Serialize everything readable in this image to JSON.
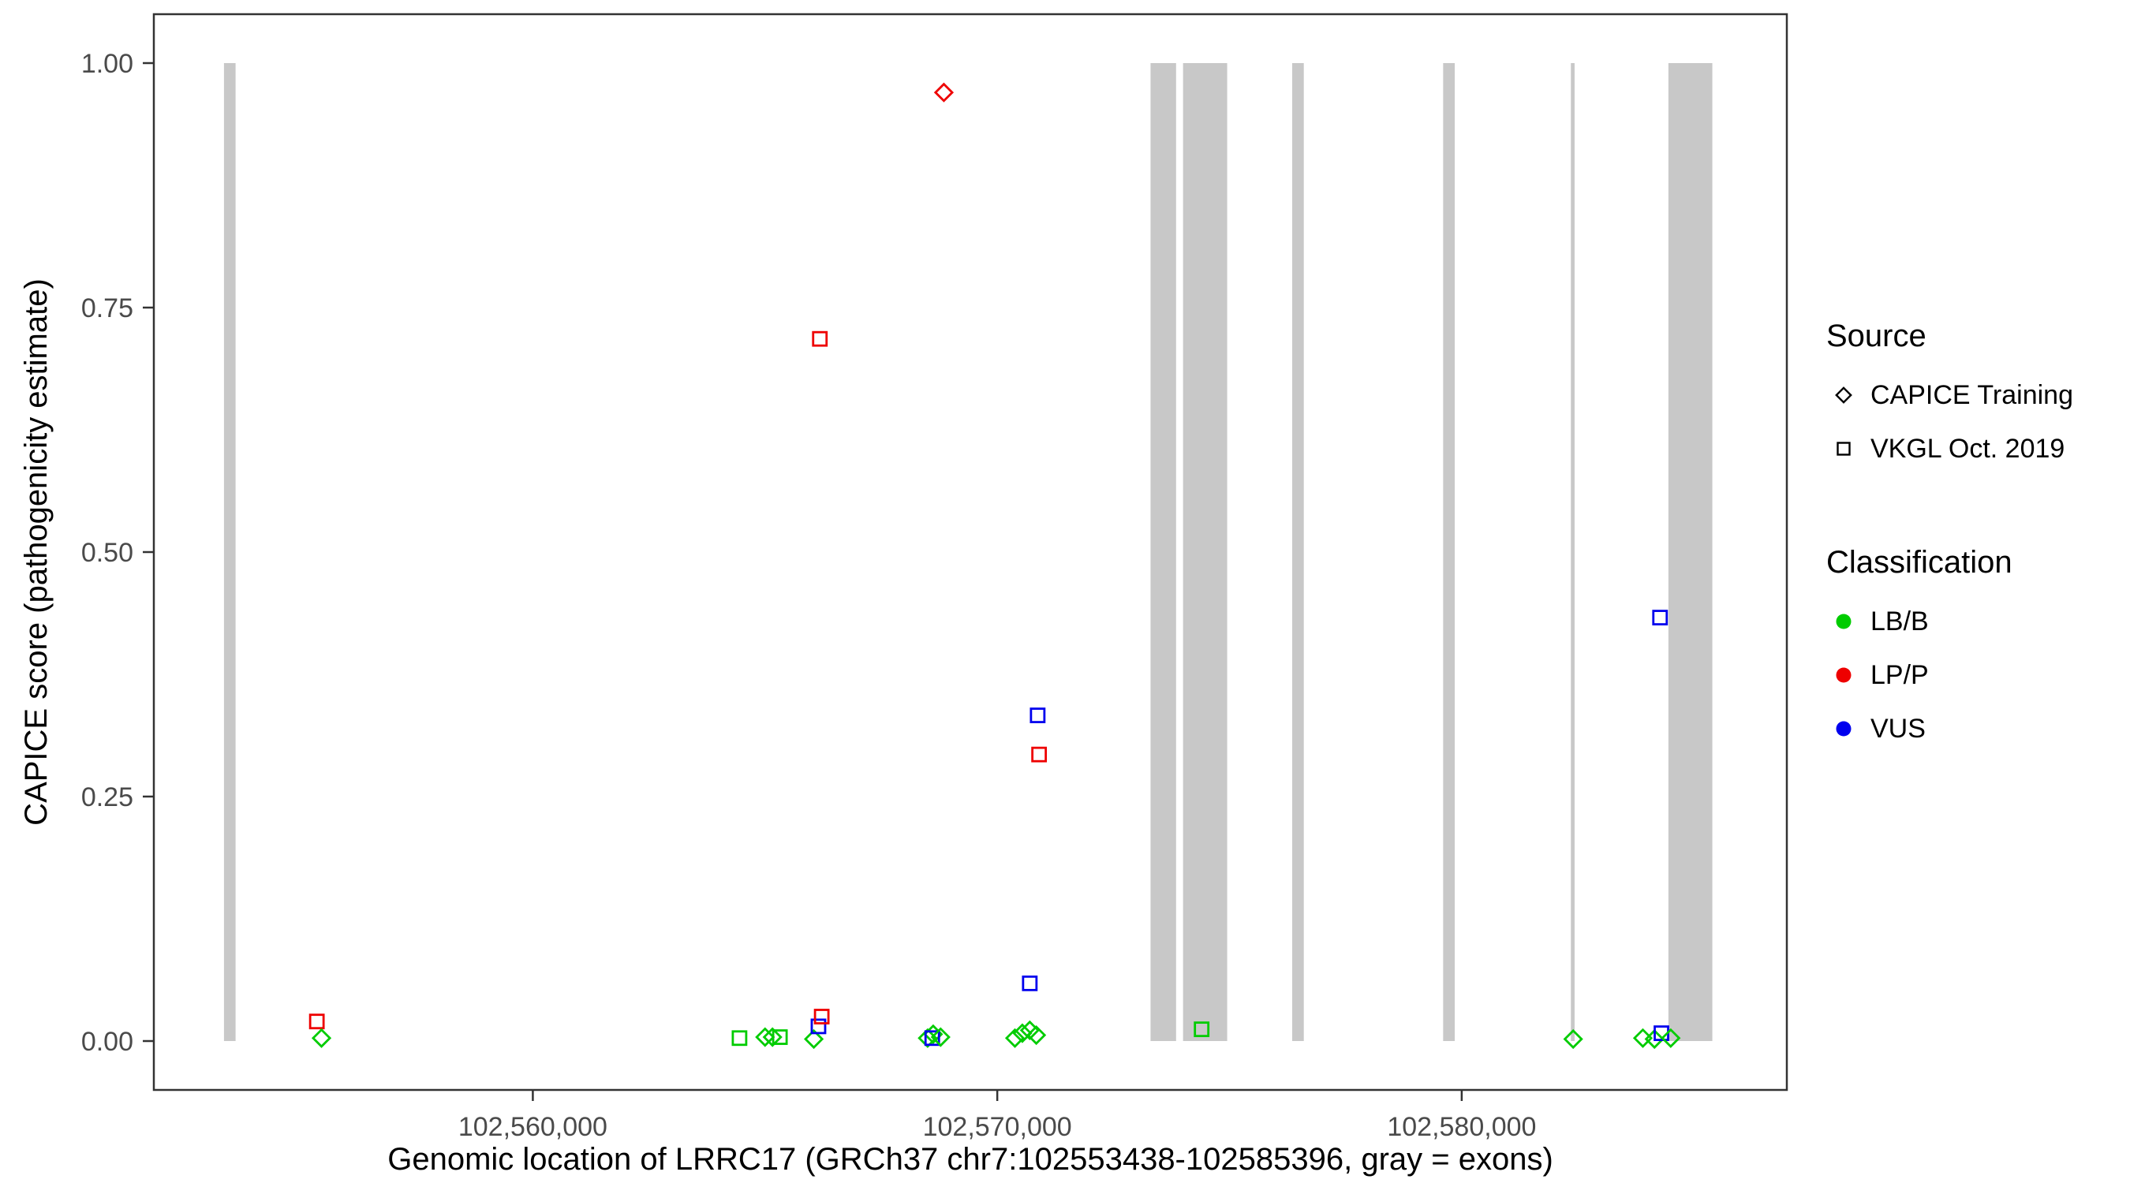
{
  "legend": {
    "source": {
      "title": "Source",
      "items": [
        {
          "label": "CAPICE Training",
          "shape": "diamond"
        },
        {
          "label": "VKGL Oct. 2019",
          "shape": "square"
        }
      ]
    },
    "classification": {
      "title": "Classification",
      "items": [
        {
          "label": "LB/B",
          "color": "#00cc00"
        },
        {
          "label": "LP/P",
          "color": "#ee0000"
        },
        {
          "label": "VUS",
          "color": "#0000ee"
        }
      ]
    }
  },
  "chart_data": {
    "type": "scatter",
    "title": "",
    "xlabel": "Genomic location of LRRC17 (GRCh37 chr7:102553438-102585396, gray = exons)",
    "ylabel": "CAPICE score (pathogenicity estimate)",
    "xlim": [
      102551840,
      102587000
    ],
    "ylim": [
      -0.05,
      1.05
    ],
    "grid": "off",
    "legend_position": "right",
    "x_ticks": [
      {
        "value": 102560000,
        "label": "102,560,000"
      },
      {
        "value": 102570000,
        "label": "102,570,000"
      },
      {
        "value": 102580000,
        "label": "102,580,000"
      }
    ],
    "y_ticks": [
      {
        "value": 0.0,
        "label": "0.00"
      },
      {
        "value": 0.25,
        "label": "0.25"
      },
      {
        "value": 0.5,
        "label": "0.50"
      },
      {
        "value": 0.75,
        "label": "0.75"
      },
      {
        "value": 1.0,
        "label": "1.00"
      }
    ],
    "exon_color": "#c8c8c8",
    "exons": [
      [
        102553350,
        102553600
      ],
      [
        102573300,
        102573850
      ],
      [
        102574000,
        102574950
      ],
      [
        102576350,
        102576600
      ],
      [
        102579600,
        102579850
      ],
      [
        102582350,
        102582430
      ],
      [
        102584450,
        102585396
      ]
    ],
    "classification_colors": {
      "LB/B": "#00cc00",
      "LP/P": "#ee0000",
      "VUS": "#0000ee"
    },
    "source_shapes": {
      "CAPICE Training": "diamond",
      "VKGL Oct. 2019": "square"
    },
    "points": [
      {
        "x": 102555350,
        "y": 0.02,
        "source": "VKGL Oct. 2019",
        "classification": "LP/P"
      },
      {
        "x": 102555450,
        "y": 0.003,
        "source": "CAPICE Training",
        "classification": "LB/B"
      },
      {
        "x": 102564450,
        "y": 0.003,
        "source": "VKGL Oct. 2019",
        "classification": "LB/B"
      },
      {
        "x": 102565000,
        "y": 0.004,
        "source": "CAPICE Training",
        "classification": "LB/B"
      },
      {
        "x": 102565160,
        "y": 0.004,
        "source": "CAPICE Training",
        "classification": "LB/B"
      },
      {
        "x": 102565320,
        "y": 0.004,
        "source": "VKGL Oct. 2019",
        "classification": "LB/B"
      },
      {
        "x": 102566050,
        "y": 0.002,
        "source": "CAPICE Training",
        "classification": "LB/B"
      },
      {
        "x": 102566150,
        "y": 0.015,
        "source": "VKGL Oct. 2019",
        "classification": "VUS"
      },
      {
        "x": 102566220,
        "y": 0.025,
        "source": "VKGL Oct. 2019",
        "classification": "LP/P"
      },
      {
        "x": 102566180,
        "y": 0.718,
        "source": "VKGL Oct. 2019",
        "classification": "LP/P"
      },
      {
        "x": 102568500,
        "y": 0.003,
        "source": "CAPICE Training",
        "classification": "LB/B"
      },
      {
        "x": 102568620,
        "y": 0.007,
        "source": "CAPICE Training",
        "classification": "LB/B"
      },
      {
        "x": 102568600,
        "y": 0.003,
        "source": "VKGL Oct. 2019",
        "classification": "VUS"
      },
      {
        "x": 102568780,
        "y": 0.004,
        "source": "CAPICE Training",
        "classification": "LB/B"
      },
      {
        "x": 102568850,
        "y": 0.97,
        "source": "CAPICE Training",
        "classification": "LP/P"
      },
      {
        "x": 102570380,
        "y": 0.003,
        "source": "CAPICE Training",
        "classification": "LB/B"
      },
      {
        "x": 102570540,
        "y": 0.008,
        "source": "CAPICE Training",
        "classification": "LB/B"
      },
      {
        "x": 102570700,
        "y": 0.011,
        "source": "CAPICE Training",
        "classification": "LB/B"
      },
      {
        "x": 102570840,
        "y": 0.006,
        "source": "CAPICE Training",
        "classification": "LB/B"
      },
      {
        "x": 102570700,
        "y": 0.059,
        "source": "VKGL Oct. 2019",
        "classification": "VUS"
      },
      {
        "x": 102570870,
        "y": 0.333,
        "source": "VKGL Oct. 2019",
        "classification": "VUS"
      },
      {
        "x": 102570900,
        "y": 0.293,
        "source": "VKGL Oct. 2019",
        "classification": "LP/P"
      },
      {
        "x": 102574400,
        "y": 0.012,
        "source": "VKGL Oct. 2019",
        "classification": "LB/B"
      },
      {
        "x": 102582400,
        "y": 0.002,
        "source": "CAPICE Training",
        "classification": "LB/B"
      },
      {
        "x": 102583900,
        "y": 0.003,
        "source": "CAPICE Training",
        "classification": "LB/B"
      },
      {
        "x": 102584150,
        "y": 0.002,
        "source": "CAPICE Training",
        "classification": "LB/B"
      },
      {
        "x": 102584300,
        "y": 0.008,
        "source": "VKGL Oct. 2019",
        "classification": "VUS"
      },
      {
        "x": 102584270,
        "y": 0.433,
        "source": "VKGL Oct. 2019",
        "classification": "VUS"
      },
      {
        "x": 102584500,
        "y": 0.003,
        "source": "CAPICE Training",
        "classification": "LB/B"
      }
    ]
  }
}
